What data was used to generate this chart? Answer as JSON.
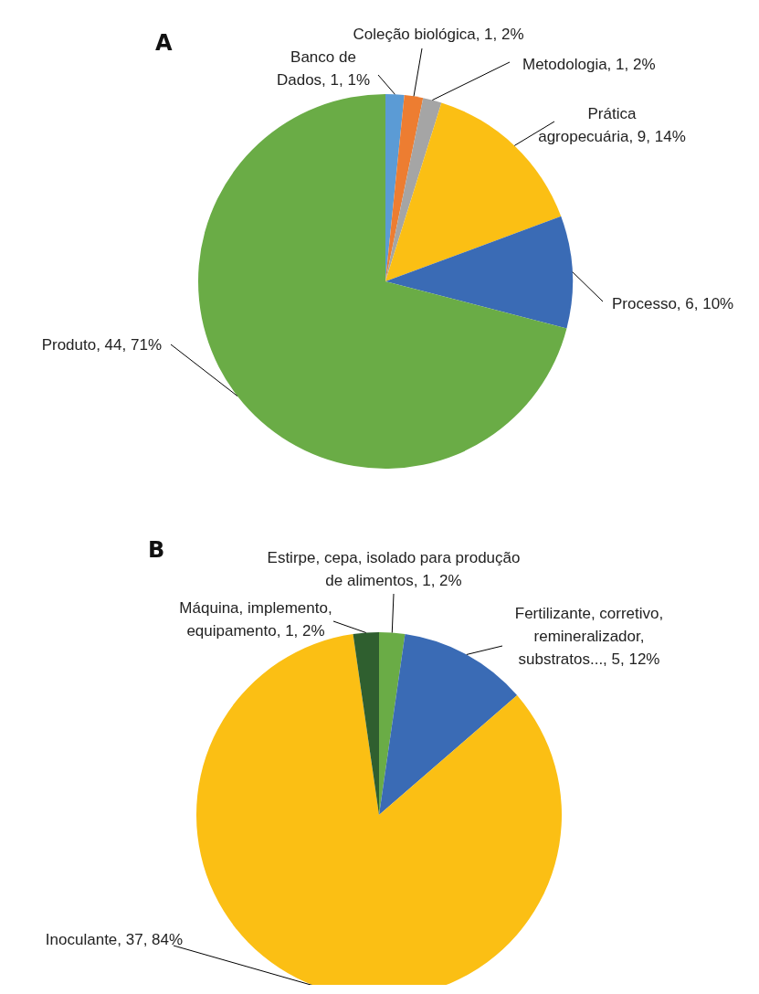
{
  "chart_data": [
    {
      "type": "pie",
      "title": "A",
      "categories": [
        "Banco de Dados",
        "Coleção biológica",
        "Metodologia",
        "Prática agropecuária",
        "Processo",
        "Produto"
      ],
      "values": [
        1,
        1,
        1,
        9,
        6,
        44
      ],
      "colors": [
        "#5b9bd5",
        "#ed7d31",
        "#a5a5a5",
        "#fbbf14",
        "#3a6bb5",
        "#6aac46"
      ],
      "value_labels": [
        "1, 1%",
        "1, 2%",
        "1, 2%",
        "9, 14%",
        "6, 10%",
        "44, 71%"
      ]
    },
    {
      "type": "pie",
      "title": "B",
      "categories": [
        "Estirpe, cepa, isolado para produção de alimentos",
        "Fertilizante, corretivo, remineralizador, substratos...",
        "Inoculante",
        "Máquina, implemento, equipamento"
      ],
      "values": [
        1,
        5,
        37,
        1
      ],
      "colors": [
        "#6aac46",
        "#3a6bb5",
        "#fbbf14",
        "#2f5f2f"
      ],
      "value_labels": [
        "1, 2%",
        "5, 12%",
        "37, 84%",
        "1, 2%"
      ]
    }
  ]
}
